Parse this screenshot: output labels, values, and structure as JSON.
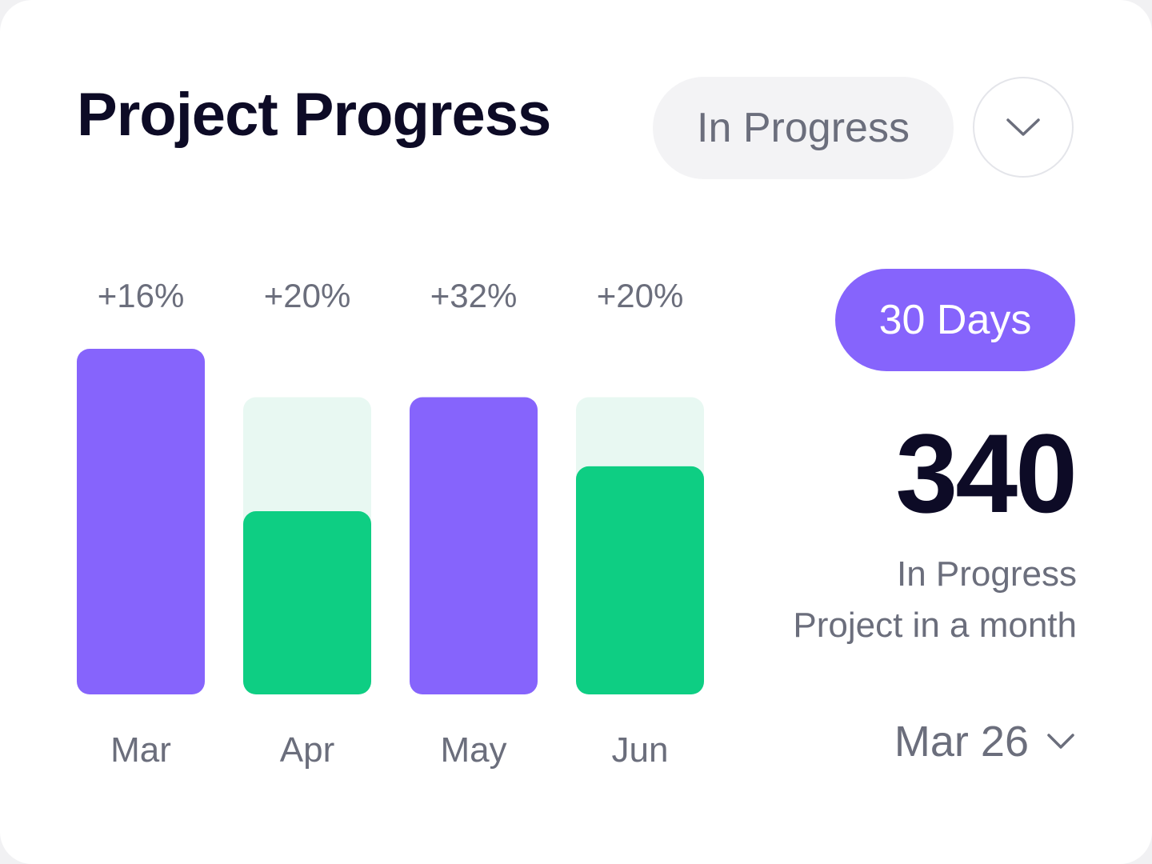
{
  "header": {
    "title": "Project Progress",
    "status_select": "In Progress",
    "dropdown_icon": "chevron-down-icon"
  },
  "summary": {
    "period_badge": "30 Days",
    "count": "340",
    "description_line1": "In Progress",
    "description_line2": "Project in a month",
    "date_select": "Mar 26",
    "date_icon": "chevron-down-icon"
  },
  "colors": {
    "purple": "#8664FC",
    "green": "#0ECE83",
    "green_track": "#E8F8F2",
    "text_dark": "#0D0B26",
    "text_muted": "#6B6E7C"
  },
  "chart_data": {
    "type": "bar",
    "categories": [
      "Mar",
      "Apr",
      "May",
      "Jun"
    ],
    "labels": [
      "+16%",
      "+20%",
      "+32%",
      "+20%"
    ],
    "bars": [
      {
        "category": "Mar",
        "style": "purple",
        "value": 100,
        "track": 100
      },
      {
        "category": "Apr",
        "style": "green",
        "value": 53,
        "track": 86
      },
      {
        "category": "May",
        "style": "purple",
        "value": 86,
        "track": 86
      },
      {
        "category": "Jun",
        "style": "green",
        "value": 66,
        "track": 86
      }
    ],
    "ylim": [
      0,
      100
    ],
    "grid": false,
    "legend": "none"
  }
}
